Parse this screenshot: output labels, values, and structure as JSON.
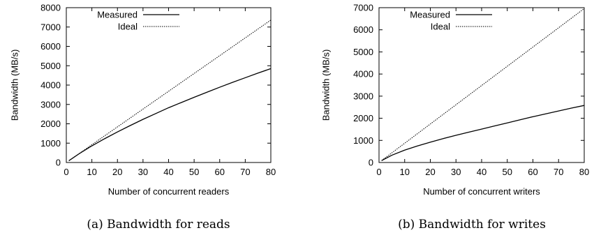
{
  "chart_data": [
    {
      "type": "line",
      "caption": "(a) Bandwidth for reads",
      "xlabel": "Number of concurrent readers",
      "ylabel": "Bandwidth (MB/s)",
      "xlim": [
        0,
        80
      ],
      "ylim": [
        0,
        8000
      ],
      "xticks": [
        0,
        10,
        20,
        30,
        40,
        50,
        60,
        70,
        80
      ],
      "yticks": [
        0,
        1000,
        2000,
        3000,
        4000,
        5000,
        6000,
        7000,
        8000
      ],
      "legend_position": "top-left",
      "grid": false,
      "series": [
        {
          "name": "Measured",
          "style": "solid",
          "x": [
            1,
            5,
            10,
            15,
            20,
            25,
            30,
            35,
            40,
            45,
            50,
            55,
            60,
            65,
            70,
            75,
            80
          ],
          "y": [
            92,
            450,
            860,
            1230,
            1580,
            1910,
            2230,
            2530,
            2830,
            3100,
            3370,
            3630,
            3890,
            4140,
            4380,
            4620,
            4850
          ]
        },
        {
          "name": "Ideal",
          "style": "dotted",
          "x": [
            1,
            80
          ],
          "y": [
            92,
            7360
          ]
        }
      ]
    },
    {
      "type": "line",
      "caption": "(b) Bandwidth for writes",
      "xlabel": "Number of concurrent writers",
      "ylabel": "Bandwidth (MB/s)",
      "xlim": [
        0,
        80
      ],
      "ylim": [
        0,
        7000
      ],
      "xticks": [
        0,
        10,
        20,
        30,
        40,
        50,
        60,
        70,
        80
      ],
      "yticks": [
        0,
        1000,
        2000,
        3000,
        4000,
        5000,
        6000,
        7000
      ],
      "legend_position": "top-left",
      "grid": false,
      "series": [
        {
          "name": "Measured",
          "style": "solid",
          "x": [
            1,
            5,
            10,
            15,
            20,
            25,
            30,
            35,
            40,
            45,
            50,
            55,
            60,
            65,
            70,
            75,
            80
          ],
          "y": [
            87,
            330,
            560,
            750,
            920,
            1080,
            1230,
            1370,
            1510,
            1650,
            1790,
            1930,
            2070,
            2200,
            2330,
            2460,
            2580
          ]
        },
        {
          "name": "Ideal",
          "style": "dotted",
          "x": [
            1,
            80
          ],
          "y": [
            87,
            6960
          ]
        }
      ]
    }
  ]
}
